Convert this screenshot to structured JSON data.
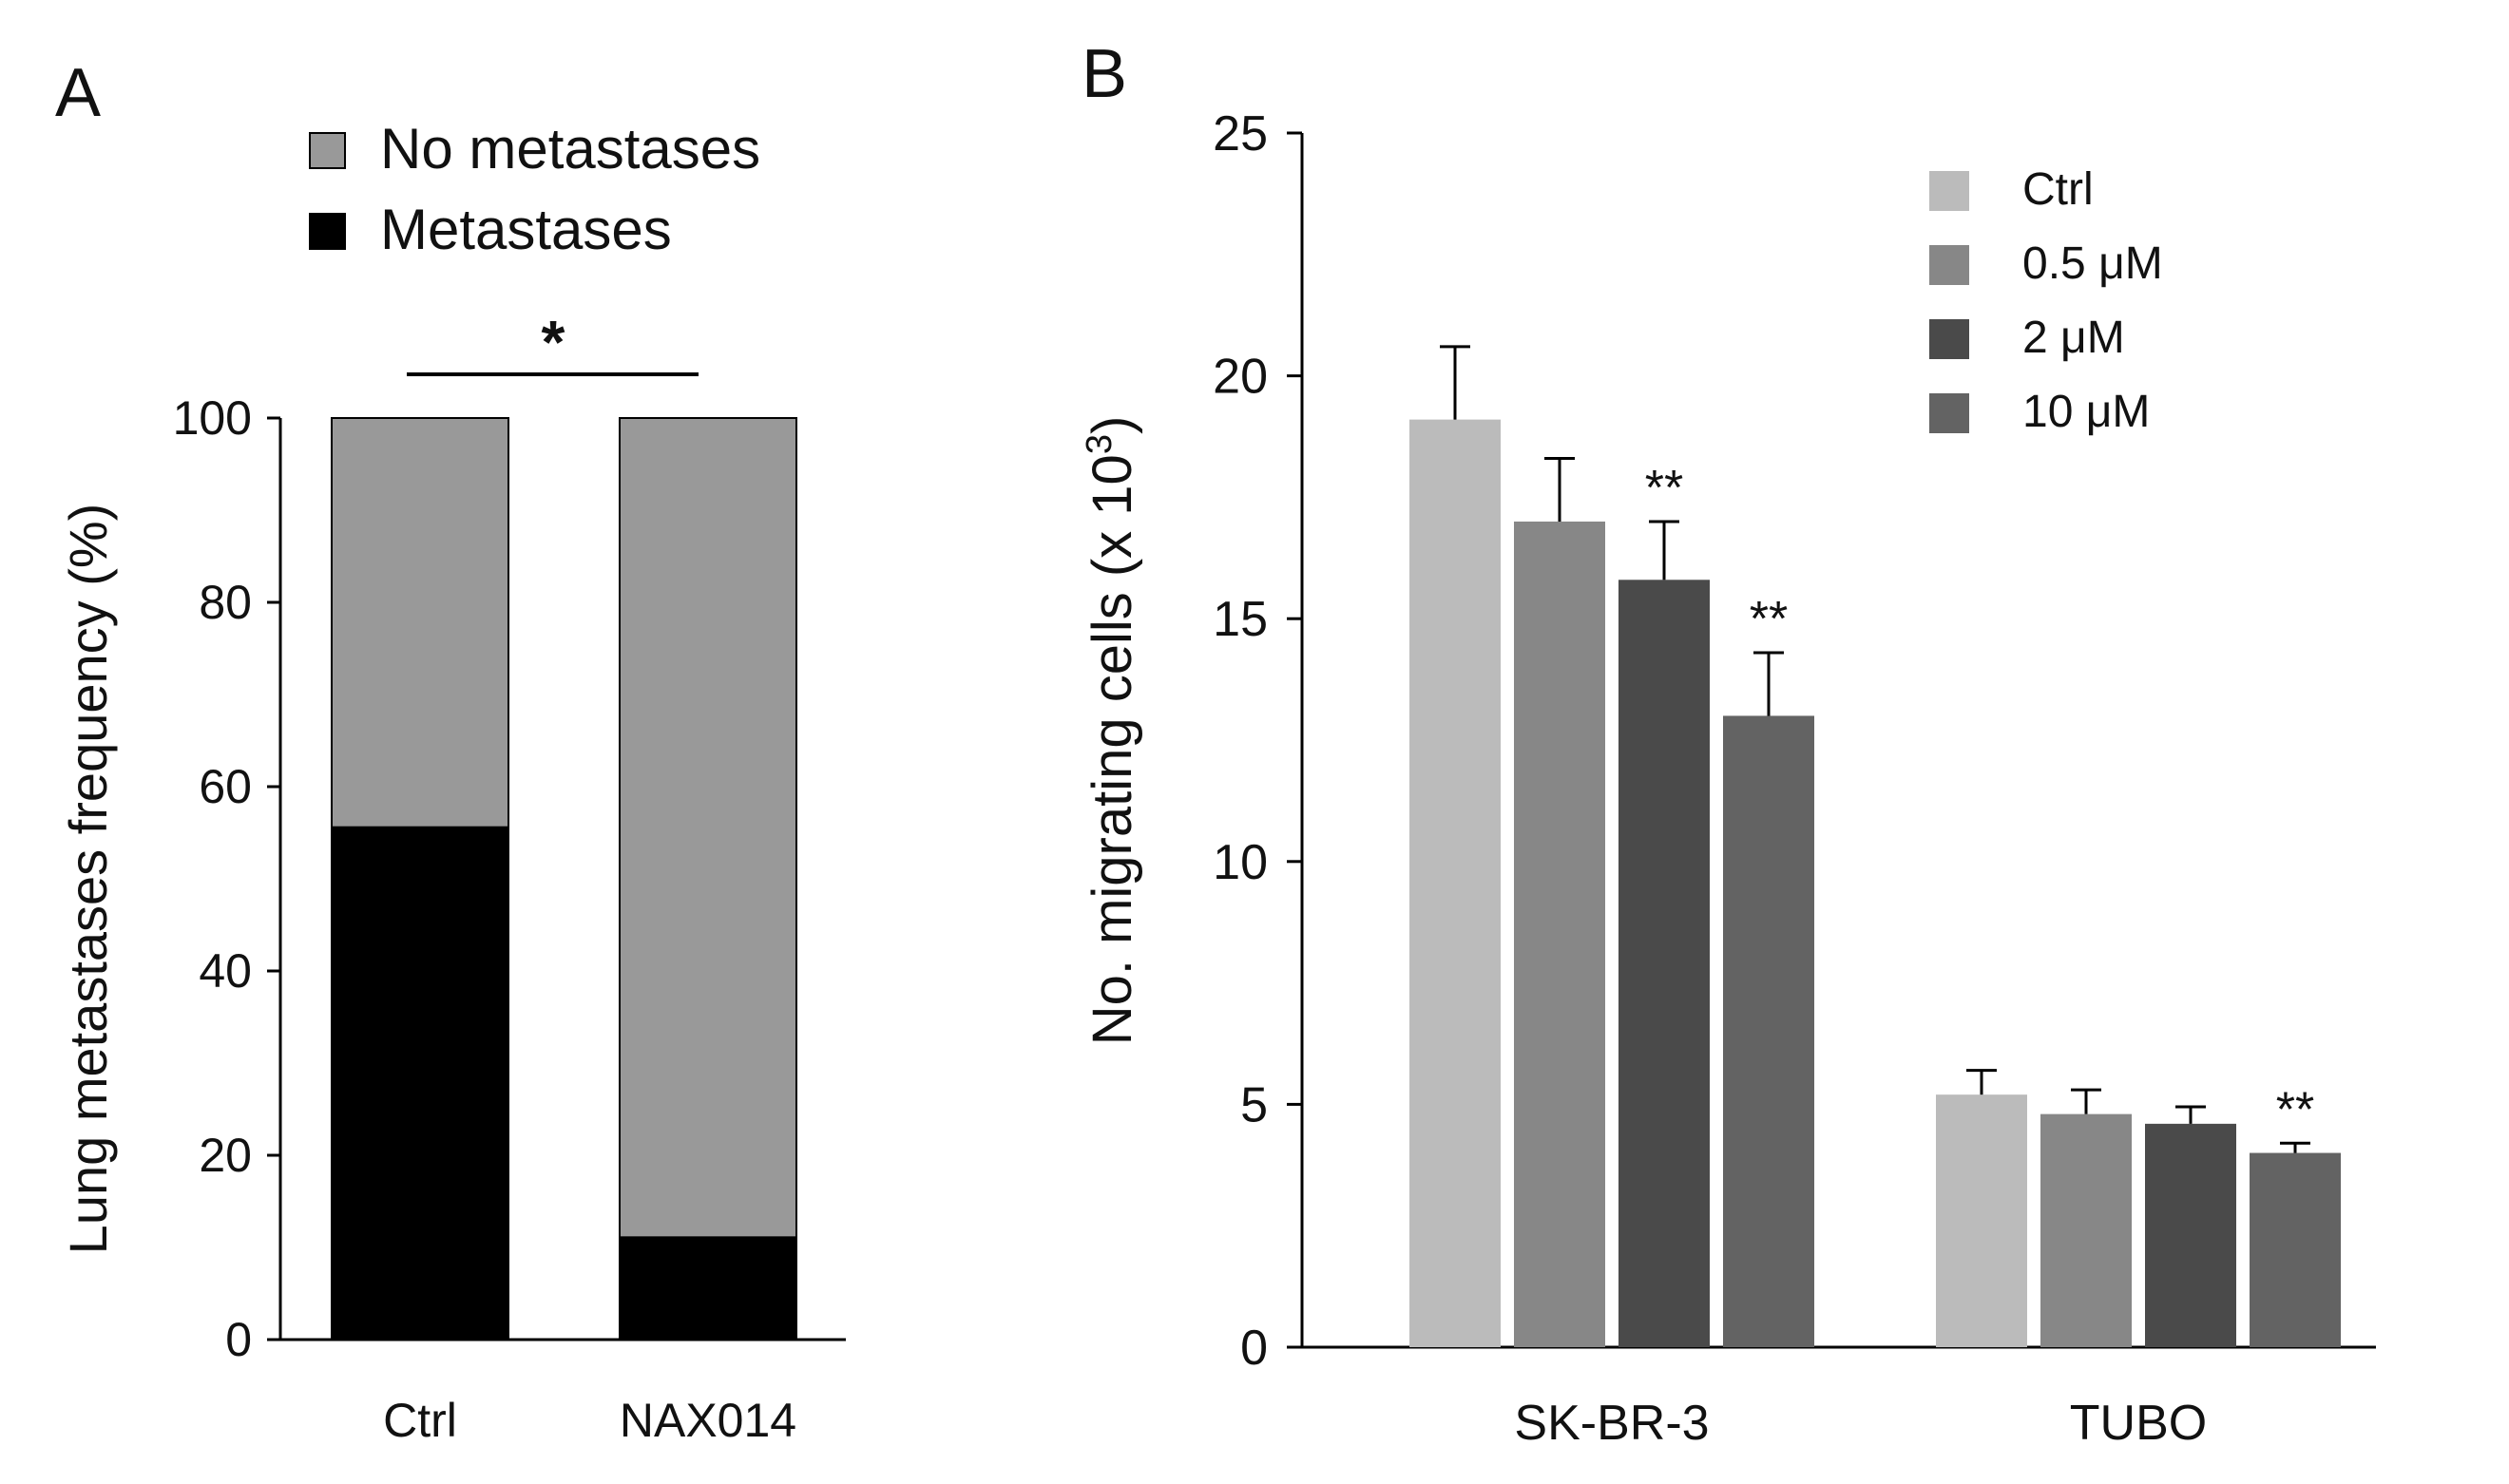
{
  "chart_data": [
    {
      "panel": "A",
      "type": "bar",
      "stacked": true,
      "categories": [
        "Ctrl",
        "NAX014"
      ],
      "series": [
        {
          "name": "Metastases",
          "values": [
            55.6,
            11.1
          ],
          "color": "#000000"
        },
        {
          "name": "No metastases",
          "values": [
            44.4,
            88.9
          ],
          "color": "#999999"
        }
      ],
      "legend": [
        "No metastases",
        "Metastases"
      ],
      "ylabel": "Lung metastases frequency (%)",
      "xlabel": "",
      "ylim": [
        0,
        100
      ],
      "yticks": [
        0,
        20,
        40,
        60,
        80,
        100
      ],
      "significance": {
        "label": "*",
        "between": [
          "Ctrl",
          "NAX014"
        ]
      },
      "legend_position": "top"
    },
    {
      "panel": "B",
      "type": "bar",
      "categories": [
        "SK-BR-3",
        "TUBO"
      ],
      "series": [
        {
          "name": "Ctrl",
          "values": [
            19.1,
            5.2
          ],
          "errors": [
            1.5,
            0.5
          ],
          "sig": [
            "",
            ""
          ],
          "color": "#bbbbbb"
        },
        {
          "name": "0.5 μM",
          "values": [
            17.0,
            4.8
          ],
          "errors": [
            1.3,
            0.5
          ],
          "sig": [
            "",
            ""
          ],
          "color": "#878787"
        },
        {
          "name": "2 μM",
          "values": [
            15.8,
            4.6
          ],
          "errors": [
            1.2,
            0.35
          ],
          "sig": [
            "**",
            ""
          ],
          "color": "#4a4a4a"
        },
        {
          "name": "10 μM",
          "values": [
            13.0,
            4.0
          ],
          "errors": [
            1.3,
            0.2
          ],
          "sig": [
            "**",
            "**"
          ],
          "color": "#636363"
        }
      ],
      "ylabel_main": "No. migrating cells (x 10",
      "ylabel_sup": "3",
      "ylabel_close": ")",
      "xlabel": "",
      "ylim": [
        0,
        25
      ],
      "yticks": [
        0,
        5,
        10,
        15,
        20,
        25
      ],
      "legend_position": "top-right"
    }
  ]
}
